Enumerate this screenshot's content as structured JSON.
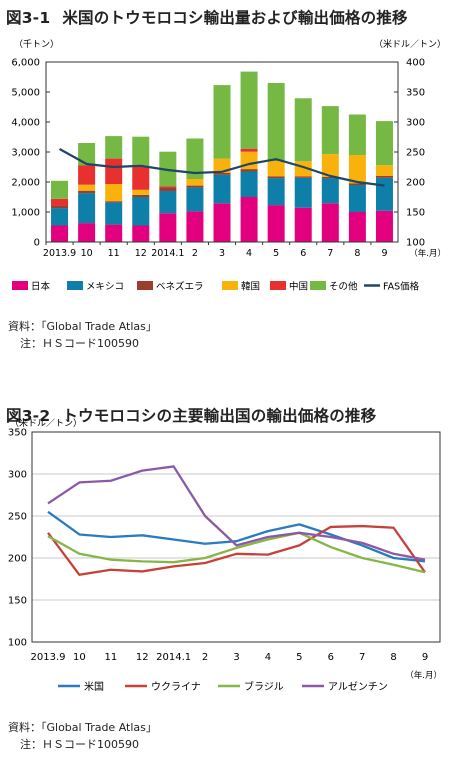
{
  "chart_data": [
    {
      "type": "bar",
      "figure_label": "図3-1",
      "title": "米国のトウモロコシ輸出量および輸出価格の推移",
      "ylabel_left": "（千トン）",
      "ylabel_right": "（米ドル／トン）",
      "xlabel": "（年.月）",
      "ylim_left": [
        0,
        6000
      ],
      "ylim_right": [
        100,
        400
      ],
      "yticks_left": [
        "0",
        "1,000",
        "2,000",
        "3,000",
        "4,000",
        "5,000",
        "6,000"
      ],
      "yticks_right": [
        "100",
        "150",
        "200",
        "250",
        "300",
        "350",
        "400"
      ],
      "categories": [
        "2013.9",
        "10",
        "11",
        "12",
        "2014.1",
        "2",
        "3",
        "4",
        "5",
        "6",
        "7",
        "8",
        "9"
      ],
      "stacked": true,
      "series": [
        {
          "name": "日本",
          "color": "#e3007f",
          "values": [
            550,
            630,
            580,
            550,
            960,
            1020,
            1290,
            1500,
            1230,
            1140,
            1290,
            1000,
            1040
          ]
        },
        {
          "name": "メキシコ",
          "color": "#0e7fa8",
          "values": [
            580,
            1000,
            740,
            950,
            740,
            800,
            950,
            850,
            900,
            1000,
            830,
            900,
            1100
          ]
        },
        {
          "name": "ベネズエラ",
          "color": "#9c3d2f",
          "values": [
            90,
            80,
            40,
            70,
            120,
            60,
            60,
            80,
            60,
            50,
            50,
            50,
            60
          ]
        },
        {
          "name": "韓国",
          "color": "#f9b20b",
          "values": [
            0,
            200,
            570,
            170,
            0,
            220,
            480,
            580,
            510,
            500,
            760,
            950,
            360
          ]
        },
        {
          "name": "中国",
          "color": "#e8312f",
          "values": [
            220,
            640,
            850,
            800,
            40,
            0,
            0,
            100,
            0,
            0,
            0,
            0,
            0
          ]
        },
        {
          "name": "その他",
          "color": "#75b843",
          "values": [
            600,
            750,
            750,
            970,
            1150,
            1350,
            2450,
            2570,
            2600,
            2100,
            1600,
            1350,
            1470
          ]
        }
      ],
      "line": {
        "name": "FAS価格",
        "color": "#1f4663",
        "axis": "right",
        "values": [
          255,
          230,
          225,
          227,
          220,
          215,
          217,
          230,
          238,
          225,
          210,
          200,
          194
        ]
      },
      "legend_position": "bottom",
      "grid": false
    },
    {
      "type": "line",
      "figure_label": "図3-2",
      "title": "トウモロコシの主要輸出国の輸出価格の推移",
      "ylabel": "（米ドル／トン）",
      "xlabel": "（年.月）",
      "ylim": [
        100,
        350
      ],
      "yticks": [
        "100",
        "150",
        "200",
        "250",
        "300",
        "350"
      ],
      "categories": [
        "2013.9",
        "10",
        "11",
        "12",
        "2014.1",
        "2",
        "3",
        "4",
        "5",
        "6",
        "7",
        "8",
        "9"
      ],
      "series": [
        {
          "name": "米国",
          "color": "#2a7bbf",
          "values": [
            255,
            228,
            225,
            227,
            222,
            217,
            220,
            232,
            240,
            228,
            215,
            200,
            196
          ]
        },
        {
          "name": "ウクライナ",
          "color": "#c8403a",
          "values": [
            230,
            180,
            186,
            184,
            190,
            194,
            205,
            204,
            215,
            237,
            238,
            236,
            183
          ]
        },
        {
          "name": "ブラジル",
          "color": "#86b647",
          "values": [
            226,
            205,
            198,
            196,
            195,
            200,
            212,
            222,
            230,
            213,
            200,
            192,
            183
          ]
        },
        {
          "name": "アルゼンチン",
          "color": "#8b5aa6",
          "values": [
            265,
            290,
            292,
            304,
            309,
            250,
            215,
            225,
            230,
            225,
            218,
            205,
            198
          ]
        }
      ],
      "legend_position": "bottom",
      "grid": "horizontal"
    }
  ],
  "notes": [
    {
      "source_label": "資料：",
      "source_text": "「Global Trade Atlas」",
      "note_label": "注：",
      "note_text": "ＨＳコード100590"
    },
    {
      "source_label": "資料：",
      "source_text": "「Global Trade Atlas」",
      "note_label": "注：",
      "note_text": "ＨＳコード100590"
    }
  ]
}
